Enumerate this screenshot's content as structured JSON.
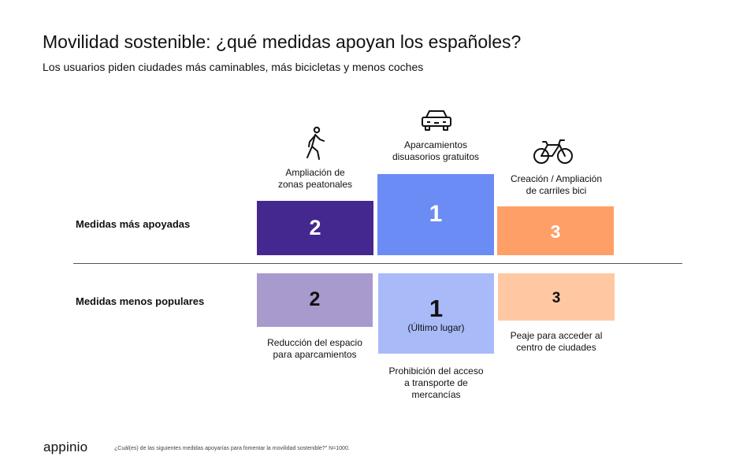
{
  "title": "Movilidad sostenible: ¿qué medidas apoyan los españoles?",
  "subtitle": "Los usuarios piden ciudades más caminables, más bicicletas y menos coches",
  "rows": {
    "top": "Medidas más apoyadas",
    "bottom": "Medidas menos populares"
  },
  "chart_data": {
    "type": "table",
    "title": "Movilidad sostenible: ¿qué medidas apoyan los españoles?",
    "subtitle": "Los usuarios piden ciudades más caminables, más bicicletas y menos coches",
    "most_supported": [
      {
        "rank": 2,
        "label_lines": [
          "Ampliación de",
          "zonas peatonales"
        ],
        "color": "#45288f",
        "icon": "pedestrian-icon"
      },
      {
        "rank": 1,
        "label_lines": [
          "Aparcamientos",
          "disuasorios gratuitos"
        ],
        "color": "#6b8cf5",
        "icon": "car-icon"
      },
      {
        "rank": 3,
        "label_lines": [
          "Creación / Ampliación",
          "de carriles bici"
        ],
        "color": "#ff9f68",
        "icon": "bicycle-icon"
      }
    ],
    "least_popular": [
      {
        "rank": 2,
        "label_lines": [
          "Reducción del espacio",
          "para aparcamientos"
        ],
        "color": "#a89acc"
      },
      {
        "rank": 1,
        "note": "(Último lugar)",
        "label_lines": [
          "Prohibición del acceso",
          "a transporte de",
          "mercancías"
        ],
        "color": "#a9baf9"
      },
      {
        "rank": 3,
        "label_lines": [
          "Peaje para acceder al",
          "centro de ciudades"
        ],
        "color": "#ffc8a3"
      }
    ]
  },
  "footer": {
    "logo": "appinio",
    "note": "¿Cuál(es) de las siguientes medidas apoyarías para fomentar la movilidad sostenible?\" N=1000."
  }
}
